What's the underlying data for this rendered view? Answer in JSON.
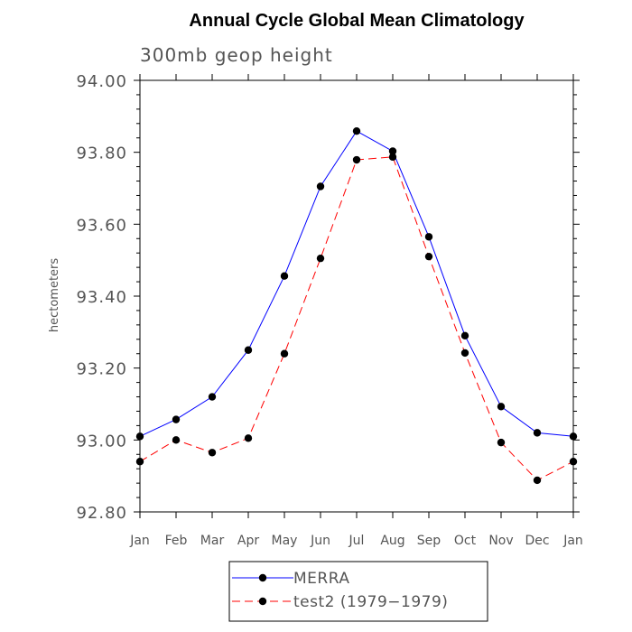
{
  "chart_data": {
    "type": "line",
    "title": "Annual Cycle Global Mean Climatology",
    "subtitle": "300mb geop height",
    "xlabel": "",
    "ylabel": "hectometers",
    "categories": [
      "Jan",
      "Feb",
      "Mar",
      "Apr",
      "May",
      "Jun",
      "Jul",
      "Aug",
      "Sep",
      "Oct",
      "Nov",
      "Dec",
      "Jan"
    ],
    "ylim": [
      92.8,
      94.0
    ],
    "yticks": [
      92.8,
      93.0,
      93.2,
      93.4,
      93.6,
      93.8,
      94.0
    ],
    "ytick_labels": [
      "92.80",
      "93.00",
      "93.20",
      "93.40",
      "93.60",
      "93.80",
      "94.00"
    ],
    "series": [
      {
        "name": "MERRA",
        "color": "#0000ff",
        "dashed": false,
        "values": [
          93.01,
          93.057,
          93.12,
          93.25,
          93.456,
          93.705,
          93.859,
          93.803,
          93.565,
          93.29,
          93.093,
          93.02,
          93.01
        ]
      },
      {
        "name": "test2 (1979−1979)",
        "color": "#ff0000",
        "dashed": true,
        "values": [
          92.94,
          93.0,
          92.965,
          93.005,
          93.24,
          93.505,
          93.779,
          93.787,
          93.51,
          93.242,
          92.993,
          92.888,
          92.94
        ]
      }
    ],
    "legend_position": "bottom-center",
    "grid": false
  }
}
